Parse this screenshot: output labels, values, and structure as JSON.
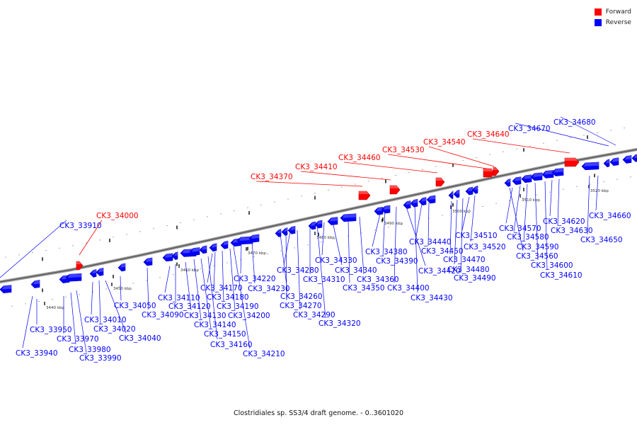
{
  "colors": {
    "forward": "#ff0000",
    "reverse": "#0000ff",
    "backbone": "#888888"
  },
  "legend": {
    "forward": "Forward",
    "reverse": "Reverse"
  },
  "caption": "Clostridiales sp. SS3/4 draft genome. - 0..3601020",
  "ticks": [
    "3440 kbp",
    "3450 kbp",
    "3460 kbp",
    "3470 kbp",
    "3480 kbp",
    "3490 kbp",
    "3500 kbp",
    "3510 kbp",
    "3520 kbp"
  ],
  "forward_genes": [
    "CK3_34000",
    "CK3_34370",
    "CK3_34410",
    "CK3_34460",
    "CK3_34530",
    "CK3_34540",
    "CK3_34640"
  ],
  "reverse_genes": [
    "CK3_33910",
    "CK3_33940",
    "CK3_33950",
    "CK3_33970",
    "CK3_33980",
    "CK3_33990",
    "CK3_34010",
    "CK3_34020",
    "CK3_34040",
    "CK3_34050",
    "CK3_34090",
    "CK3_34110",
    "CK3_34120",
    "CK3_34130",
    "CK3_34140",
    "CK3_34150",
    "CK3_34160",
    "CK3_34170",
    "CK3_34180",
    "CK3_34190",
    "CK3_34200",
    "CK3_34210",
    "CK3_34220",
    "CK3_34230",
    "CK3_34260",
    "CK3_34270",
    "CK3_34280",
    "CK3_34290",
    "CK3_34310",
    "CK3_34320",
    "CK3_34330",
    "CK3_34340",
    "CK3_34350",
    "CK3_34360",
    "CK3_34380",
    "CK3_34390",
    "CK3_34400",
    "CK3_34420",
    "CK3_34430",
    "CK3_34440",
    "CK3_34450",
    "CK3_34470",
    "CK3_34480",
    "CK3_34490",
    "CK3_34510",
    "CK3_34520",
    "CK3_34560",
    "CK3_34570",
    "CK3_34580",
    "CK3_34590",
    "CK3_34600",
    "CK3_34610",
    "CK3_34620",
    "CK3_34630",
    "CK3_34650",
    "CK3_34660",
    "CK3_34670",
    "CK3_34680"
  ]
}
